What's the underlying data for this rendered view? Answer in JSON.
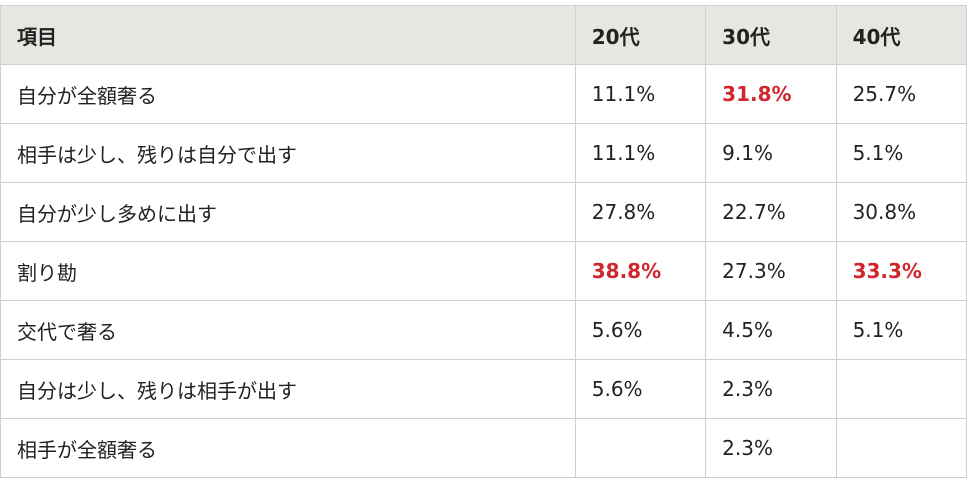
{
  "colors": {
    "header_bg": "#e8e6e1",
    "border": "#cfcfcf",
    "highlight": "#d0262d",
    "text": "#222222"
  },
  "table": {
    "headers": [
      "項目",
      "20代",
      "30代",
      "40代"
    ],
    "rows": [
      {
        "label": "自分が全額奢る",
        "cells": [
          {
            "value": "11.1%",
            "highlight": false
          },
          {
            "value": "31.8%",
            "highlight": true
          },
          {
            "value": "25.7%",
            "highlight": false
          }
        ]
      },
      {
        "label": "相手は少し、残りは自分で出す",
        "cells": [
          {
            "value": "11.1%",
            "highlight": false
          },
          {
            "value": "9.1%",
            "highlight": false
          },
          {
            "value": "5.1%",
            "highlight": false
          }
        ]
      },
      {
        "label": "自分が少し多めに出す",
        "cells": [
          {
            "value": "27.8%",
            "highlight": false
          },
          {
            "value": "22.7%",
            "highlight": false
          },
          {
            "value": "30.8%",
            "highlight": false
          }
        ]
      },
      {
        "label": "割り勘",
        "cells": [
          {
            "value": "38.8%",
            "highlight": true
          },
          {
            "value": "27.3%",
            "highlight": false
          },
          {
            "value": "33.3%",
            "highlight": true
          }
        ]
      },
      {
        "label": "交代で奢る",
        "cells": [
          {
            "value": "5.6%",
            "highlight": false
          },
          {
            "value": "4.5%",
            "highlight": false
          },
          {
            "value": "5.1%",
            "highlight": false
          }
        ]
      },
      {
        "label": "自分は少し、残りは相手が出す",
        "cells": [
          {
            "value": "5.6%",
            "highlight": false
          },
          {
            "value": "2.3%",
            "highlight": false
          },
          {
            "value": "",
            "highlight": false
          }
        ]
      },
      {
        "label": "相手が全額奢る",
        "cells": [
          {
            "value": "",
            "highlight": false
          },
          {
            "value": "2.3%",
            "highlight": false
          },
          {
            "value": "",
            "highlight": false
          }
        ]
      }
    ]
  }
}
